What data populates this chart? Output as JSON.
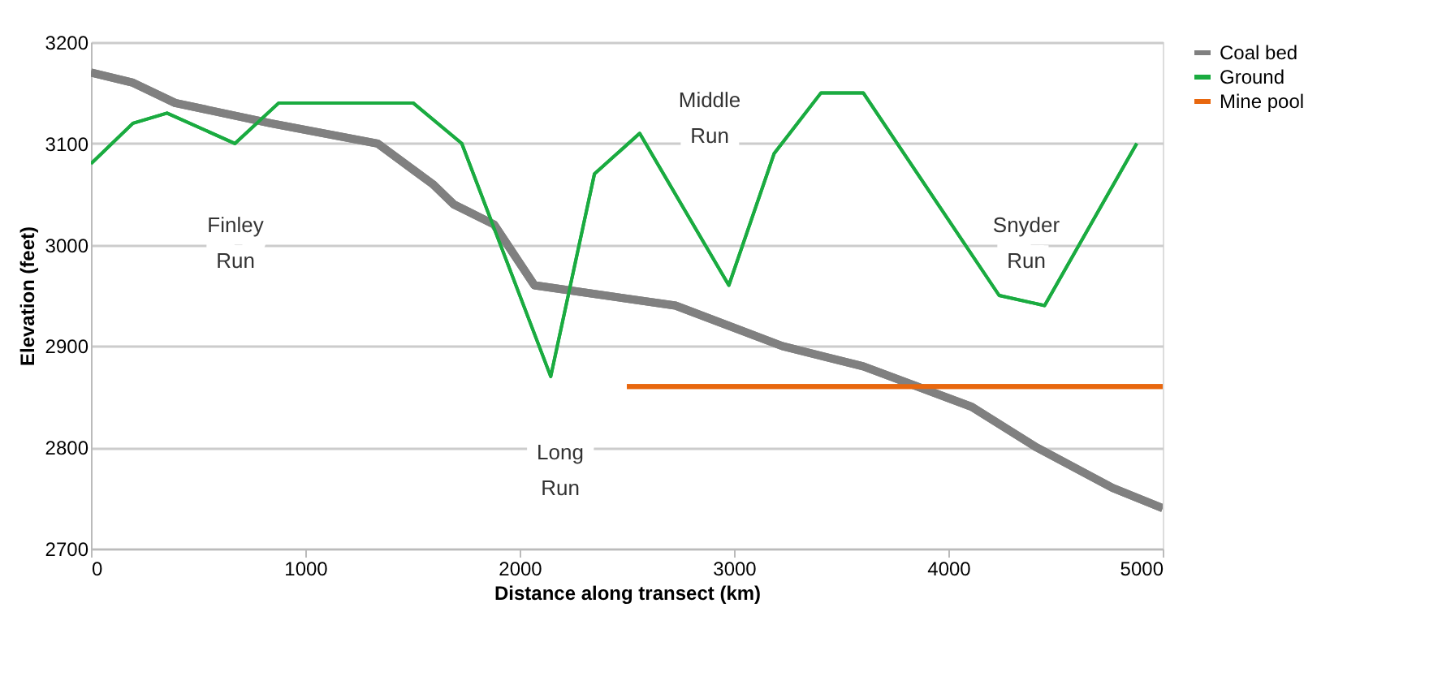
{
  "chart_data": {
    "type": "line",
    "xlabel": "Distance along transect (km)",
    "ylabel": "Elevation (feet)",
    "xlim": [
      0,
      5000
    ],
    "xticks": [
      0,
      1000,
      2000,
      3000,
      4000,
      5000
    ],
    "ylim": [
      2700,
      3200
    ],
    "yticks": [
      2700,
      2800,
      2900,
      3000,
      3100,
      3200
    ],
    "grid": "y",
    "legend": "right",
    "marker": "none",
    "line_style": "solid",
    "series": [
      {
        "name": "Coal bed",
        "color": "#808080",
        "x": [
          0,
          196,
          393,
          838,
          1337,
          1594,
          1692,
          1881,
          2069,
          2727,
          3225,
          3603,
          4109,
          4411,
          4766,
          5000
        ],
        "values": [
          3170,
          3160,
          3140,
          3120,
          3100,
          3060,
          3040,
          3020,
          2960,
          2940,
          2900,
          2880,
          2840,
          2800,
          2760,
          2740
        ]
      },
      {
        "name": "Ground",
        "color": "#1aab40",
        "x": [
          0,
          196,
          355,
          672,
          876,
          1503,
          1730,
          2145,
          2349,
          2560,
          2976,
          3187,
          3406,
          3603,
          4237,
          4449,
          4879
        ],
        "values": [
          3080,
          3120,
          3130,
          3100,
          3140,
          3140,
          3100,
          2870,
          3070,
          3110,
          2960,
          3090,
          3150,
          3150,
          2950,
          2940,
          3100
        ]
      },
      {
        "name": "Mine pool",
        "color": "#e8670e",
        "x": [
          2500,
          5000
        ],
        "values": [
          2860,
          2860
        ]
      }
    ],
    "annotations": [
      "Finley Run",
      "Long Run",
      "Middle Run",
      "Snyder Run"
    ]
  }
}
